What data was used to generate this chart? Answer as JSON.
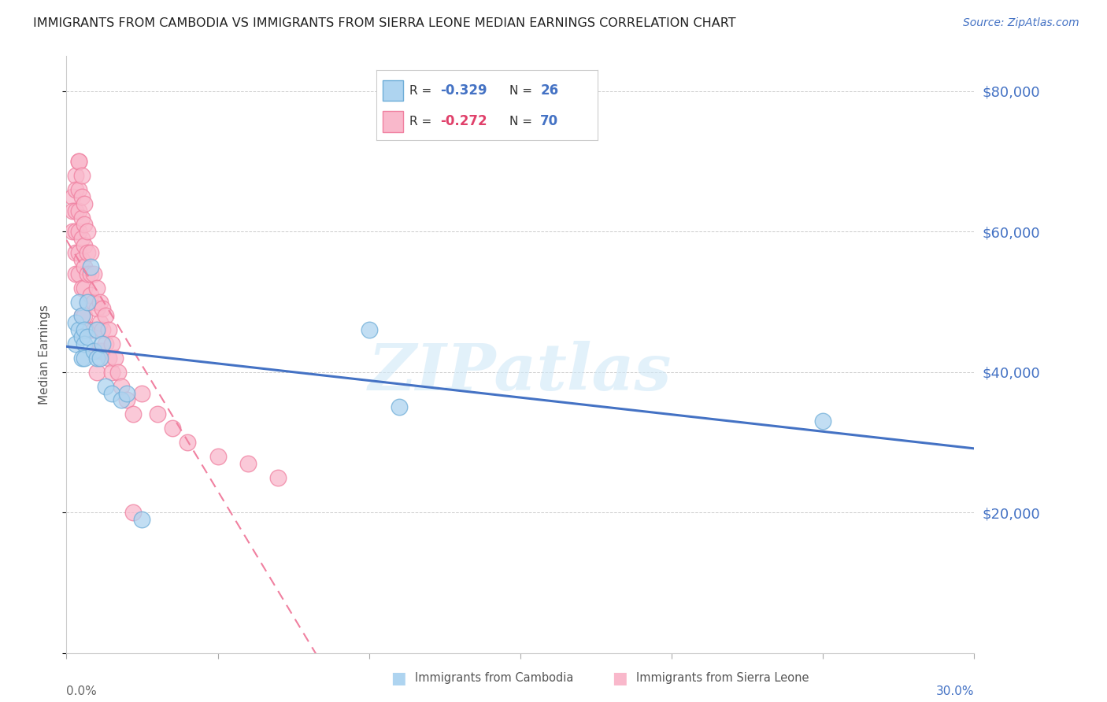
{
  "title": "IMMIGRANTS FROM CAMBODIA VS IMMIGRANTS FROM SIERRA LEONE MEDIAN EARNINGS CORRELATION CHART",
  "source": "Source: ZipAtlas.com",
  "ylabel": "Median Earnings",
  "yticks": [
    0,
    20000,
    40000,
    60000,
    80000
  ],
  "ytick_labels": [
    "",
    "$20,000",
    "$40,000",
    "$60,000",
    "$80,000"
  ],
  "xlim": [
    0.0,
    0.3
  ],
  "ylim": [
    0,
    85000
  ],
  "watermark": "ZIPatlas",
  "cambodia_color": "#aed4f0",
  "sierra_color": "#f9b8cb",
  "cambodia_edge_color": "#6faed8",
  "sierra_edge_color": "#f080a0",
  "cambodia_line_color": "#4472c4",
  "sierra_line_color": "#f080a0",
  "background_color": "#ffffff",
  "grid_color": "#cccccc",
  "title_color": "#222222",
  "right_axis_color": "#4472c4",
  "watermark_color": "#d0e8f8",
  "cambodia_scatter_x": [
    0.003,
    0.003,
    0.004,
    0.004,
    0.005,
    0.005,
    0.005,
    0.006,
    0.006,
    0.006,
    0.007,
    0.007,
    0.008,
    0.009,
    0.01,
    0.01,
    0.011,
    0.012,
    0.013,
    0.015,
    0.018,
    0.02,
    0.025,
    0.1,
    0.11,
    0.25
  ],
  "cambodia_scatter_y": [
    47000,
    44000,
    50000,
    46000,
    48000,
    45000,
    42000,
    46000,
    44000,
    42000,
    50000,
    45000,
    55000,
    43000,
    46000,
    42000,
    42000,
    44000,
    38000,
    37000,
    36000,
    37000,
    19000,
    46000,
    35000,
    33000
  ],
  "sierra_scatter_x": [
    0.002,
    0.002,
    0.002,
    0.003,
    0.003,
    0.003,
    0.003,
    0.003,
    0.003,
    0.004,
    0.004,
    0.004,
    0.004,
    0.004,
    0.004,
    0.004,
    0.005,
    0.005,
    0.005,
    0.005,
    0.005,
    0.005,
    0.005,
    0.006,
    0.006,
    0.006,
    0.006,
    0.006,
    0.006,
    0.007,
    0.007,
    0.007,
    0.007,
    0.008,
    0.008,
    0.008,
    0.008,
    0.009,
    0.009,
    0.009,
    0.01,
    0.01,
    0.01,
    0.01,
    0.01,
    0.011,
    0.011,
    0.011,
    0.012,
    0.012,
    0.012,
    0.013,
    0.013,
    0.014,
    0.014,
    0.015,
    0.015,
    0.016,
    0.017,
    0.018,
    0.02,
    0.022,
    0.025,
    0.03,
    0.035,
    0.04,
    0.05,
    0.06,
    0.07,
    0.022
  ],
  "sierra_scatter_y": [
    65000,
    63000,
    60000,
    68000,
    66000,
    63000,
    60000,
    57000,
    54000,
    70000,
    70000,
    66000,
    63000,
    60000,
    57000,
    54000,
    68000,
    65000,
    62000,
    59000,
    56000,
    52000,
    48000,
    64000,
    61000,
    58000,
    55000,
    52000,
    48000,
    60000,
    57000,
    54000,
    50000,
    57000,
    54000,
    51000,
    46000,
    54000,
    50000,
    46000,
    52000,
    49000,
    46000,
    43000,
    40000,
    50000,
    47000,
    43000,
    49000,
    46000,
    43000,
    48000,
    44000,
    46000,
    42000,
    44000,
    40000,
    42000,
    40000,
    38000,
    36000,
    34000,
    37000,
    34000,
    32000,
    30000,
    28000,
    27000,
    25000,
    20000
  ],
  "legend_cambodia_r": "-0.329",
  "legend_cambodia_n": "26",
  "legend_sierra_r": "-0.272",
  "legend_sierra_n": "70",
  "legend_r_color": "#333333",
  "legend_n_color": "#333333",
  "legend_rv_color_cambodia": "#4472c4",
  "legend_rv_color_sierra": "#e0406a",
  "legend_nv_color": "#4472c4"
}
